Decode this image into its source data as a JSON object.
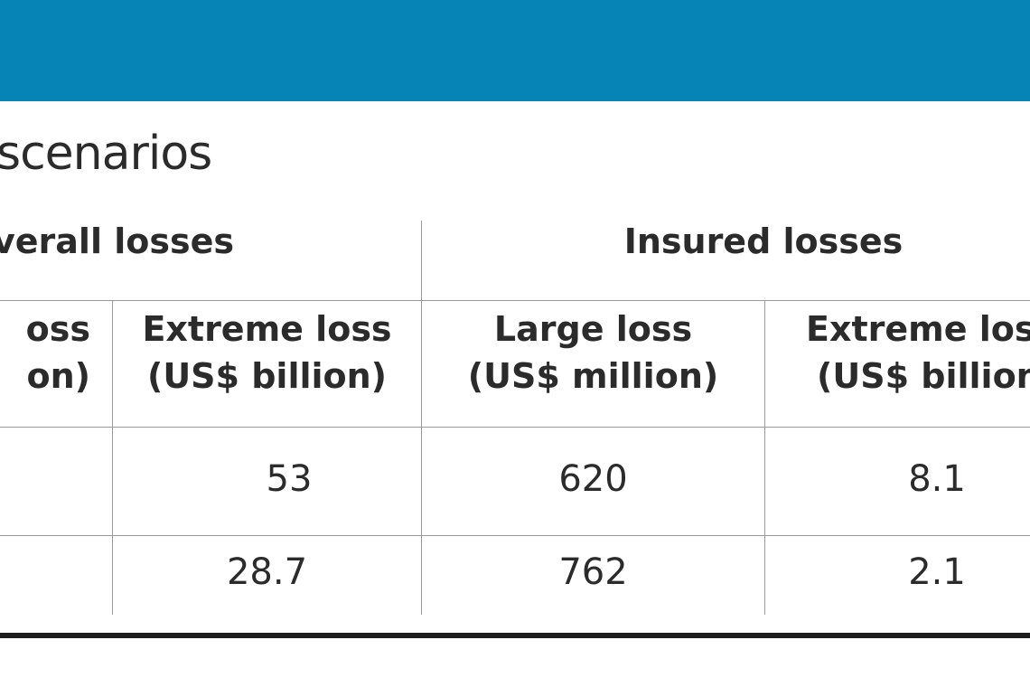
{
  "colors": {
    "banner": "#0684b5",
    "rule": "#9a9a9a",
    "bottom_rule": "#1c1c1c",
    "text": "#2b2b2b"
  },
  "title": "scenarios",
  "groups": {
    "overall": "verall losses",
    "insured": "Insured losses"
  },
  "columns": [
    {
      "line1": "oss",
      "line2": "on)"
    },
    {
      "line1": "Extreme loss",
      "line2": "(US$ billion)"
    },
    {
      "line1": "Large loss",
      "line2": "(US$ million)"
    },
    {
      "line1": "Extreme los",
      "line2": "(US$ billion"
    }
  ],
  "rows": [
    {
      "extreme_overall": "53",
      "large_insured": "620",
      "extreme_insured": "8.1"
    },
    {
      "extreme_overall": "28.7",
      "large_insured": "762",
      "extreme_insured": "2.1"
    }
  ]
}
